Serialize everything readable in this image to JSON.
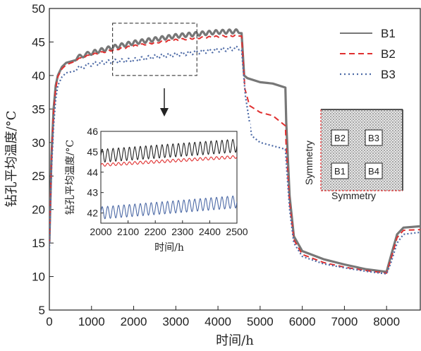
{
  "chart_data": {
    "type": "line",
    "xlabel": "时间/h",
    "ylabel": "钻孔平均温度/°C",
    "xlim": [
      0,
      8800
    ],
    "ylim": [
      5,
      50
    ],
    "xticks": [
      0,
      1000,
      2000,
      3000,
      4000,
      5000,
      6000,
      7000,
      8000
    ],
    "yticks": [
      5,
      10,
      15,
      20,
      25,
      30,
      35,
      40,
      45,
      50
    ],
    "legend_position": "top-right",
    "series": [
      {
        "name": "B1",
        "color": "#777777",
        "dash": "solid",
        "points": [
          [
            0,
            15
          ],
          [
            50,
            28
          ],
          [
            100,
            35
          ],
          [
            150,
            38.5
          ],
          [
            200,
            40
          ],
          [
            300,
            41.3
          ],
          [
            400,
            41.9
          ],
          [
            600,
            42.5
          ],
          [
            800,
            43
          ],
          [
            1000,
            43.4
          ],
          [
            1500,
            44.2
          ],
          [
            2000,
            44.9
          ],
          [
            2500,
            45.4
          ],
          [
            3000,
            45.9
          ],
          [
            3500,
            46.2
          ],
          [
            4000,
            46.5
          ],
          [
            4500,
            46.6
          ],
          [
            4560,
            46.6
          ],
          [
            4620,
            40
          ],
          [
            4700,
            39.6
          ],
          [
            5000,
            39
          ],
          [
            5300,
            38.8
          ],
          [
            5600,
            38.2
          ],
          [
            5620,
            33
          ],
          [
            5700,
            22
          ],
          [
            5800,
            16
          ],
          [
            6000,
            13.8
          ],
          [
            6500,
            12.6
          ],
          [
            7000,
            11.8
          ],
          [
            7500,
            11.1
          ],
          [
            8000,
            10.7
          ],
          [
            8100,
            13
          ],
          [
            8250,
            16.3
          ],
          [
            8400,
            17.3
          ],
          [
            8800,
            17.5
          ]
        ]
      },
      {
        "name": "B2",
        "color": "#e03030",
        "dash": "dashed",
        "points": [
          [
            0,
            15
          ],
          [
            50,
            27.5
          ],
          [
            100,
            34.5
          ],
          [
            150,
            38
          ],
          [
            200,
            39.8
          ],
          [
            300,
            41
          ],
          [
            400,
            41.6
          ],
          [
            600,
            42.2
          ],
          [
            800,
            42.7
          ],
          [
            1000,
            43.1
          ],
          [
            1500,
            43.8
          ],
          [
            2000,
            44.4
          ],
          [
            2500,
            44.9
          ],
          [
            3000,
            45.3
          ],
          [
            3500,
            45.6
          ],
          [
            4000,
            45.8
          ],
          [
            4500,
            46
          ],
          [
            4560,
            46
          ],
          [
            4640,
            38
          ],
          [
            4750,
            35.5
          ],
          [
            5000,
            34.5
          ],
          [
            5300,
            34
          ],
          [
            5600,
            32.5
          ],
          [
            5620,
            29
          ],
          [
            5700,
            21
          ],
          [
            5800,
            15.5
          ],
          [
            6000,
            13.3
          ],
          [
            6500,
            12.1
          ],
          [
            7000,
            11.4
          ],
          [
            7500,
            10.9
          ],
          [
            8000,
            10.5
          ],
          [
            8100,
            12.5
          ],
          [
            8250,
            15.8
          ],
          [
            8400,
            16.9
          ],
          [
            8800,
            17
          ]
        ]
      },
      {
        "name": "B3",
        "color": "#4d6aa6",
        "dash": "dotted",
        "points": [
          [
            0,
            14
          ],
          [
            50,
            26
          ],
          [
            100,
            32.5
          ],
          [
            150,
            36.5
          ],
          [
            200,
            38.5
          ],
          [
            300,
            39.8
          ],
          [
            400,
            40.4
          ],
          [
            600,
            40.9
          ],
          [
            800,
            41.3
          ],
          [
            1000,
            41.7
          ],
          [
            1500,
            42.1
          ],
          [
            2000,
            42.3
          ],
          [
            2500,
            42.8
          ],
          [
            3000,
            43.1
          ],
          [
            3500,
            43.5
          ],
          [
            4000,
            43.8
          ],
          [
            4500,
            44.1
          ],
          [
            4560,
            44.1
          ],
          [
            4650,
            37
          ],
          [
            4800,
            31
          ],
          [
            5000,
            30
          ],
          [
            5300,
            29.5
          ],
          [
            5600,
            29
          ],
          [
            5620,
            27
          ],
          [
            5700,
            20
          ],
          [
            5800,
            15
          ],
          [
            6000,
            13
          ],
          [
            6500,
            11.9
          ],
          [
            7000,
            11.3
          ],
          [
            7500,
            10.8
          ],
          [
            8000,
            10.4
          ],
          [
            8100,
            12
          ],
          [
            8250,
            15
          ],
          [
            8400,
            16.3
          ],
          [
            8800,
            16.6
          ]
        ]
      }
    ],
    "zoom_box": {
      "x": [
        1500,
        3500
      ],
      "y": [
        40,
        47.8
      ]
    },
    "inset": {
      "xlabel": "时间/h",
      "ylabel": "钻孔平均温度/°C",
      "xlim": [
        2000,
        2500
      ],
      "ylim": [
        41.5,
        46
      ],
      "xticks": [
        2000,
        2100,
        2200,
        2300,
        2400,
        2500
      ],
      "yticks": [
        42,
        43,
        44,
        45,
        46
      ],
      "series": [
        {
          "name": "B1",
          "color": "#222222",
          "start": 44.8,
          "end": 45.3,
          "amplitude": 0.32,
          "period": 20
        },
        {
          "name": "B2",
          "color": "#e03030",
          "start": 44.35,
          "end": 44.75,
          "amplitude": 0.07,
          "period": 20
        },
        {
          "name": "B3",
          "color": "#4d6aa6",
          "start": 42.0,
          "end": 42.55,
          "amplitude": 0.3,
          "period": 20
        }
      ]
    },
    "schematic": {
      "labels": [
        "B2",
        "B3",
        "B1",
        "B4"
      ],
      "symmetry_left": "Symmetry",
      "symmetry_bottom": "Symmetry"
    }
  }
}
